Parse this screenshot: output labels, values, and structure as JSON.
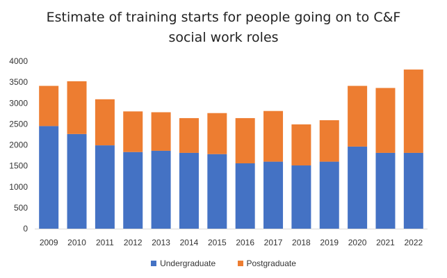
{
  "chart_data": {
    "type": "bar",
    "stacked": true,
    "title_lines": [
      "Estimate of training starts for people going on to C&F",
      "social work roles"
    ],
    "xlabel": "",
    "ylabel": "",
    "ylim": [
      0,
      4000
    ],
    "yticks": [
      0,
      500,
      1000,
      1500,
      2000,
      2500,
      3000,
      3500,
      4000
    ],
    "grid": false,
    "legend_position": "bottom",
    "categories": [
      "2009",
      "2010",
      "2011",
      "2012",
      "2013",
      "2014",
      "2015",
      "2016",
      "2017",
      "2018",
      "2019",
      "2020",
      "2021",
      "2022"
    ],
    "series": [
      {
        "name": "Undergraduate",
        "color": "#4472c4",
        "values": [
          2450,
          2260,
          1990,
          1830,
          1860,
          1810,
          1780,
          1560,
          1600,
          1510,
          1600,
          1960,
          1810,
          1810
        ]
      },
      {
        "name": "Postgraduate",
        "color": "#ed7d31",
        "values": [
          960,
          1260,
          1100,
          970,
          920,
          830,
          980,
          1080,
          1210,
          980,
          990,
          1450,
          1550,
          1990
        ]
      }
    ]
  }
}
